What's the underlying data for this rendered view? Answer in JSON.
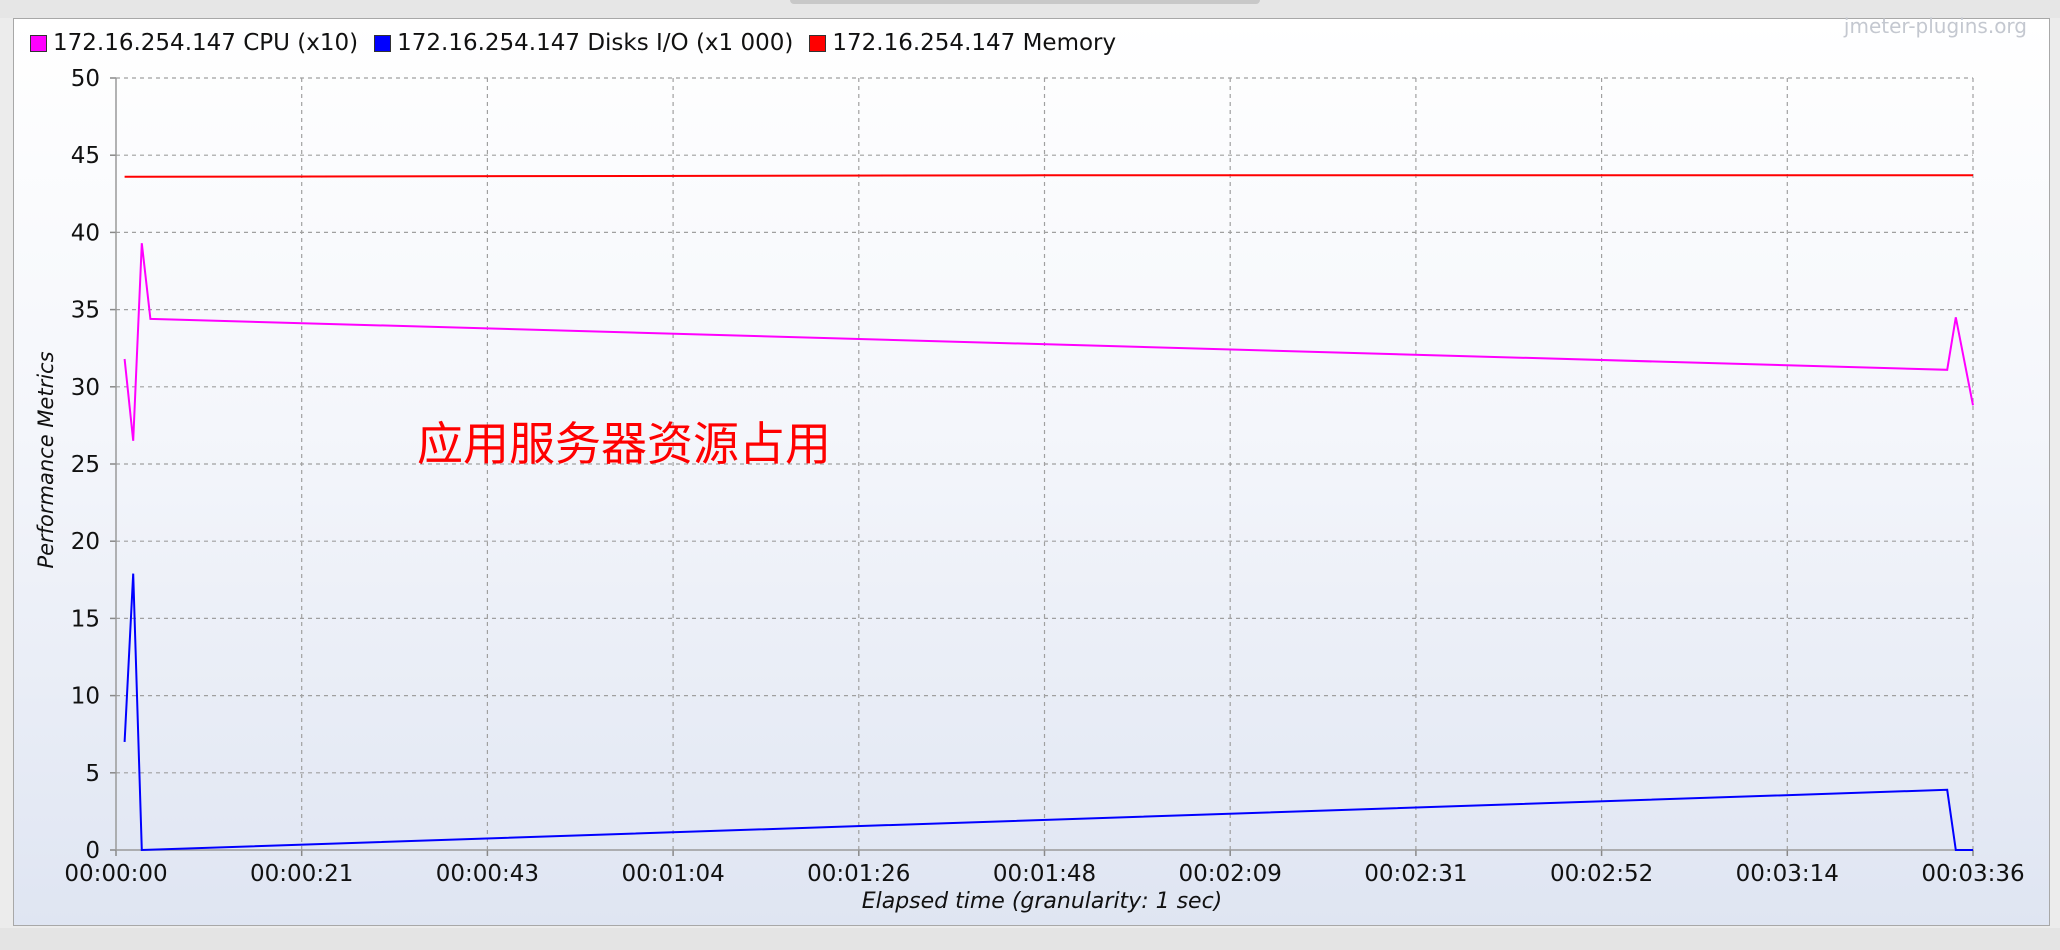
{
  "watermark": "jmeter-plugins.org",
  "annotation": "应用服务器资源占用",
  "chart_data": {
    "type": "line",
    "ylabel": "Performance Metrics",
    "xlabel": "Elapsed time (granularity: 1 sec)",
    "ylim": [
      0,
      50
    ],
    "yticks": [
      0,
      5,
      10,
      15,
      20,
      25,
      30,
      35,
      40,
      45,
      50
    ],
    "xlim_seconds": [
      0,
      216
    ],
    "x_tick_labels": [
      "00:00:00",
      "00:00:21",
      "00:00:43",
      "00:01:04",
      "00:01:26",
      "00:01:48",
      "00:02:09",
      "00:02:31",
      "00:02:52",
      "00:03:14",
      "00:03:36"
    ],
    "grid": true,
    "legend_position": "top-left",
    "series": [
      {
        "name": "172.16.254.147 CPU (x10)",
        "color": "#ff00ff",
        "x": [
          1,
          2,
          3,
          4,
          213,
          214,
          216
        ],
        "y": [
          31.8,
          26.5,
          39.3,
          34.4,
          31.1,
          34.5,
          28.8
        ]
      },
      {
        "name": "172.16.254.147 Disks I/O (x1 000)",
        "color": "#0000ff",
        "x": [
          1,
          2,
          3,
          213,
          214,
          216
        ],
        "y": [
          7.0,
          17.9,
          0.0,
          3.9,
          0.0,
          0.0
        ]
      },
      {
        "name": "172.16.254.147 Memory",
        "color": "#ff0000",
        "x": [
          1,
          108,
          216
        ],
        "y": [
          43.6,
          43.7,
          43.7
        ]
      }
    ]
  }
}
